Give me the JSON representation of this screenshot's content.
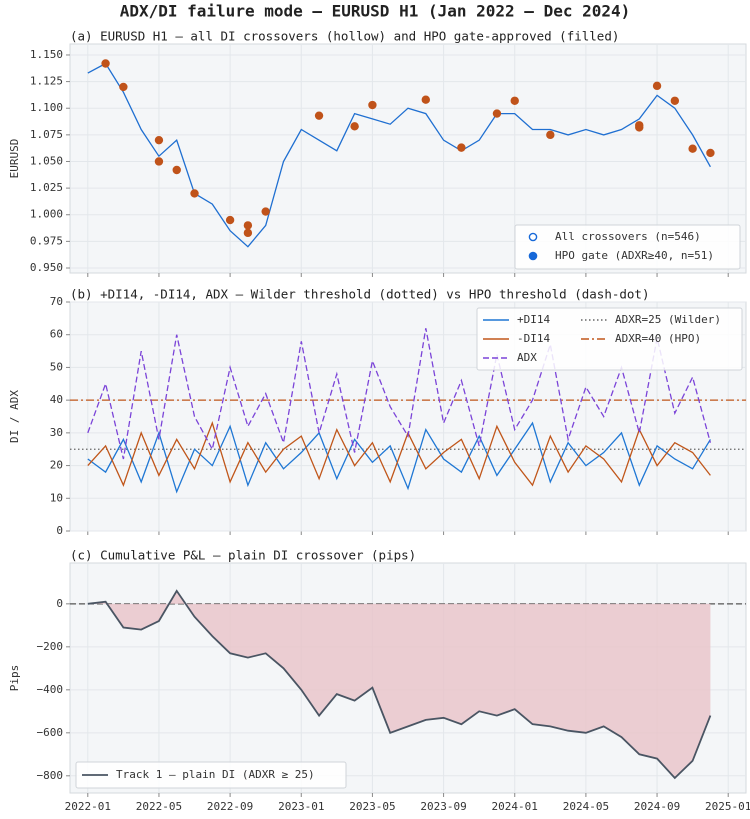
{
  "title": "ADX/DI failure mode — EURUSD H1 (Jan 2022 — Dec 2024)",
  "chart_data": [
    {
      "type": "line",
      "title": "(a)  EURUSD H1 — all DI crossovers (hollow) and HPO gate-approved (filled)",
      "y_label": "EURUSD",
      "x": [
        "2022-01",
        "2022-02",
        "2022-03",
        "2022-04",
        "2022-05",
        "2022-06",
        "2022-07",
        "2022-08",
        "2022-09",
        "2022-10",
        "2022-11",
        "2022-12",
        "2023-01",
        "2023-02",
        "2023-03",
        "2023-04",
        "2023-05",
        "2023-06",
        "2023-07",
        "2023-08",
        "2023-09",
        "2023-10",
        "2023-11",
        "2023-12",
        "2024-01",
        "2024-02",
        "2024-03",
        "2024-04",
        "2024-05",
        "2024-06",
        "2024-07",
        "2024-08",
        "2024-09",
        "2024-10",
        "2024-11",
        "2024-12"
      ],
      "series": [
        {
          "name": "EURUSD",
          "color": "#1f6fd1",
          "values": [
            1.133,
            1.142,
            1.115,
            1.08,
            1.055,
            1.07,
            1.02,
            1.01,
            0.985,
            0.97,
            0.99,
            1.05,
            1.08,
            1.07,
            1.06,
            1.095,
            1.09,
            1.085,
            1.1,
            1.095,
            1.07,
            1.06,
            1.07,
            1.095,
            1.095,
            1.08,
            1.08,
            1.075,
            1.08,
            1.075,
            1.08,
            1.09,
            1.112,
            1.1,
            1.075,
            1.045
          ]
        }
      ],
      "markers": [
        {
          "name": "All crossovers (n=546)",
          "color": "#1668d8",
          "filled": false,
          "x": [],
          "values": []
        },
        {
          "name": "HPO gate (ADXR≥40, n=51)",
          "color": "#1668d8",
          "point_color": "#c0531a",
          "filled": true,
          "x": [
            "2022-02",
            "2022-03",
            "2022-05",
            "2022-05",
            "2022-06",
            "2022-07",
            "2022-09",
            "2022-10",
            "2022-10",
            "2022-11",
            "2023-02",
            "2023-04",
            "2023-05",
            "2023-08",
            "2023-10",
            "2023-12",
            "2024-01",
            "2024-03",
            "2024-08",
            "2024-08",
            "2024-09",
            "2024-10",
            "2024-11",
            "2024-12"
          ],
          "values": [
            1.142,
            1.12,
            1.05,
            1.07,
            1.042,
            1.02,
            0.995,
            0.983,
            0.99,
            1.003,
            1.093,
            1.083,
            1.103,
            1.108,
            1.063,
            1.095,
            1.107,
            1.075,
            1.082,
            1.084,
            1.121,
            1.107,
            1.062,
            1.058
          ]
        }
      ],
      "xlim": [
        "2021-12",
        "2025-02"
      ],
      "ylim": [
        0.9453,
        1.1603
      ],
      "yticks": [
        {
          "value": 0.95,
          "label": "0.950"
        },
        {
          "value": 0.975,
          "label": "0.975"
        },
        {
          "value": 1.0,
          "label": "1.000"
        },
        {
          "value": 1.025,
          "label": "1.025"
        },
        {
          "value": 1.05,
          "label": "1.050"
        },
        {
          "value": 1.075,
          "label": "1.075"
        },
        {
          "value": 1.1,
          "label": "1.100"
        },
        {
          "value": 1.125,
          "label": "1.125"
        },
        {
          "value": 1.15,
          "label": "1.150"
        }
      ],
      "grid": true,
      "legend": "lower right"
    },
    {
      "type": "line",
      "title": "(b)  +DI14, -DI14, ADX — Wilder threshold (dotted) vs HPO threshold (dash-dot)",
      "y_label": "DI / ADX",
      "x": [
        "2022-01",
        "2022-02",
        "2022-03",
        "2022-04",
        "2022-05",
        "2022-06",
        "2022-07",
        "2022-08",
        "2022-09",
        "2022-10",
        "2022-11",
        "2022-12",
        "2023-01",
        "2023-02",
        "2023-03",
        "2023-04",
        "2023-05",
        "2023-06",
        "2023-07",
        "2023-08",
        "2023-09",
        "2023-10",
        "2023-11",
        "2023-12",
        "2024-01",
        "2024-02",
        "2024-03",
        "2024-04",
        "2024-05",
        "2024-06",
        "2024-07",
        "2024-08",
        "2024-09",
        "2024-10",
        "2024-11",
        "2024-12"
      ],
      "series": [
        {
          "name": "+DI14",
          "color": "#1f77d4",
          "style": "solid",
          "values": [
            22,
            18,
            28,
            15,
            30,
            12,
            25,
            20,
            32,
            14,
            27,
            19,
            24,
            30,
            16,
            28,
            21,
            26,
            13,
            31,
            22,
            18,
            29,
            17,
            25,
            33,
            15,
            27,
            20,
            24,
            30,
            14,
            26,
            22,
            19,
            28
          ]
        },
        {
          "name": "-DI14",
          "color": "#c0561a",
          "style": "solid",
          "values": [
            20,
            26,
            14,
            30,
            17,
            28,
            19,
            33,
            15,
            27,
            18,
            25,
            29,
            16,
            31,
            20,
            27,
            15,
            30,
            19,
            24,
            28,
            16,
            32,
            21,
            14,
            29,
            18,
            26,
            22,
            15,
            31,
            20,
            27,
            24,
            17
          ]
        },
        {
          "name": "ADX",
          "color": "#7b44d8",
          "style": "dashed",
          "values": [
            30,
            45,
            22,
            55,
            28,
            60,
            35,
            25,
            50,
            32,
            42,
            27,
            58,
            30,
            48,
            24,
            52,
            38,
            29,
            62,
            33,
            46,
            26,
            54,
            31,
            40,
            57,
            28,
            44,
            35,
            50,
            30,
            59,
            36,
            47,
            27
          ]
        }
      ],
      "hlines": [
        {
          "name": "ADXR=25 (Wilder)",
          "value": 25,
          "color": "#666666",
          "style": "dotted"
        },
        {
          "name": "ADXR=40 (HPO)",
          "value": 40,
          "color": "#c0561a",
          "style": "dashdot"
        }
      ],
      "xlim": [
        "2021-12",
        "2025-02"
      ],
      "ylim": [
        0,
        70
      ],
      "yticks": [
        0,
        10,
        20,
        30,
        40,
        50,
        60,
        70
      ],
      "grid": true,
      "legend": "upper right"
    },
    {
      "type": "area",
      "title": "(c)  Cumulative P&L — plain DI crossover (pips)",
      "y_label": "Pips",
      "x": [
        "2022-01",
        "2022-02",
        "2022-03",
        "2022-04",
        "2022-05",
        "2022-06",
        "2022-07",
        "2022-08",
        "2022-09",
        "2022-10",
        "2022-11",
        "2022-12",
        "2023-01",
        "2023-02",
        "2023-03",
        "2023-04",
        "2023-05",
        "2023-06",
        "2023-07",
        "2023-08",
        "2023-09",
        "2023-10",
        "2023-11",
        "2023-12",
        "2024-01",
        "2024-02",
        "2024-03",
        "2024-04",
        "2024-05",
        "2024-06",
        "2024-07",
        "2024-08",
        "2024-09",
        "2024-10",
        "2024-11",
        "2024-12"
      ],
      "series": [
        {
          "name": "Track 1 — plain DI (ADXR ≥ 25)",
          "color": "#4a5563",
          "fill": "#e9c3c8",
          "values": [
            0,
            10,
            -110,
            -120,
            -80,
            60,
            -60,
            -150,
            -230,
            -250,
            -230,
            -300,
            -400,
            -520,
            -420,
            -450,
            -390,
            -600,
            -570,
            -540,
            -530,
            -560,
            -500,
            -520,
            -490,
            -560,
            -570,
            -590,
            -600,
            -570,
            -620,
            -700,
            -720,
            -810,
            -730,
            -520
          ]
        }
      ],
      "hlines": [
        {
          "value": 0,
          "color": "#555555",
          "style": "dashed"
        }
      ],
      "xlim": [
        "2021-12",
        "2025-02"
      ],
      "ylim": [
        -880,
        190
      ],
      "yticks": [
        {
          "value": -800,
          "label": "−800"
        },
        {
          "value": -600,
          "label": "−600"
        },
        {
          "value": -400,
          "label": "−400"
        },
        {
          "value": -200,
          "label": "−200"
        },
        0
      ],
      "xticks": [
        "2022-01",
        "2022-05",
        "2022-09",
        "2023-01",
        "2023-05",
        "2023-09",
        "2024-01",
        "2024-05",
        "2024-09",
        "2025-01"
      ],
      "grid": true,
      "legend": "lower left"
    }
  ]
}
